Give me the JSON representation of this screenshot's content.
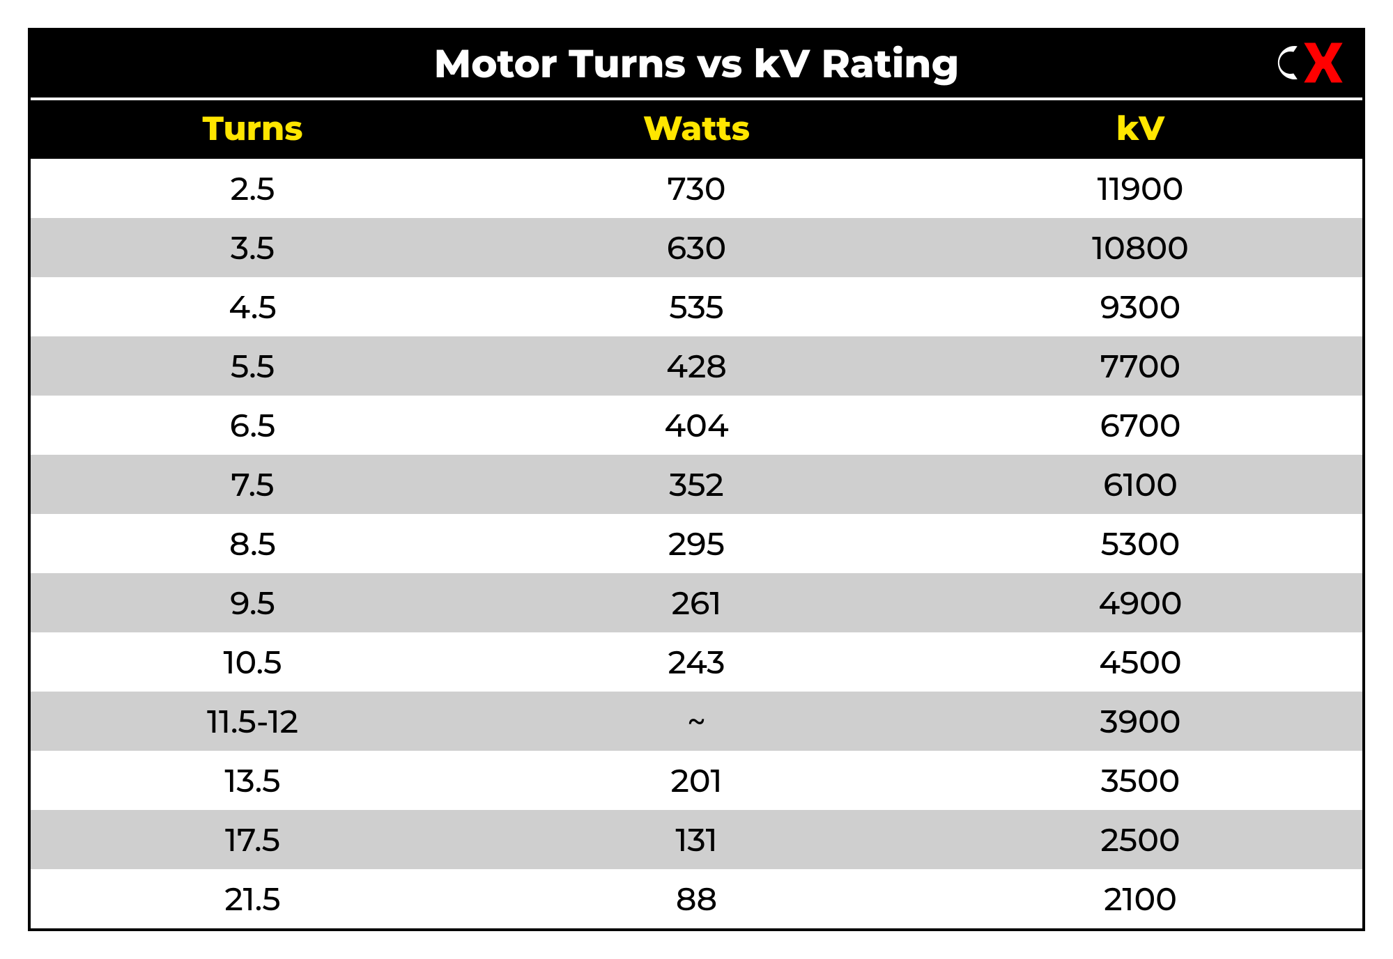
{
  "table": {
    "type": "table",
    "title": "Motor Turns vs kV Rating",
    "title_color": "#ffffff",
    "title_bg": "#000000",
    "title_fontsize": 56,
    "title_fontweight": 800,
    "header_bg": "#000000",
    "header_color": "#ffe600",
    "header_fontsize": 48,
    "header_fontweight": 800,
    "row_even_bg": "#ffffff",
    "row_odd_bg": "#cfcfcf",
    "cell_color": "#000000",
    "cell_fontsize": 46,
    "border_color": "#000000",
    "border_width": 4,
    "columns": [
      "Turns",
      "Watts",
      "kV"
    ],
    "column_align": [
      "center",
      "center",
      "center"
    ],
    "rows": [
      [
        "2.5",
        "730",
        "11900"
      ],
      [
        "3.5",
        "630",
        "10800"
      ],
      [
        "4.5",
        "535",
        "9300"
      ],
      [
        "5.5",
        "428",
        "7700"
      ],
      [
        "6.5",
        "404",
        "6700"
      ],
      [
        "7.5",
        "352",
        "6100"
      ],
      [
        "8.5",
        "295",
        "5300"
      ],
      [
        "9.5",
        "261",
        "4900"
      ],
      [
        "10.5",
        "243",
        "4500"
      ],
      [
        "11.5-12",
        "~",
        "3900"
      ],
      [
        "13.5",
        "201",
        "3500"
      ],
      [
        "17.5",
        "131",
        "2500"
      ],
      [
        "21.5",
        "88",
        "2100"
      ]
    ],
    "logo": {
      "name": "cx-logo",
      "c_fill": "#ffffff",
      "x_fill": "#ff0000",
      "stroke": "#000000"
    }
  }
}
